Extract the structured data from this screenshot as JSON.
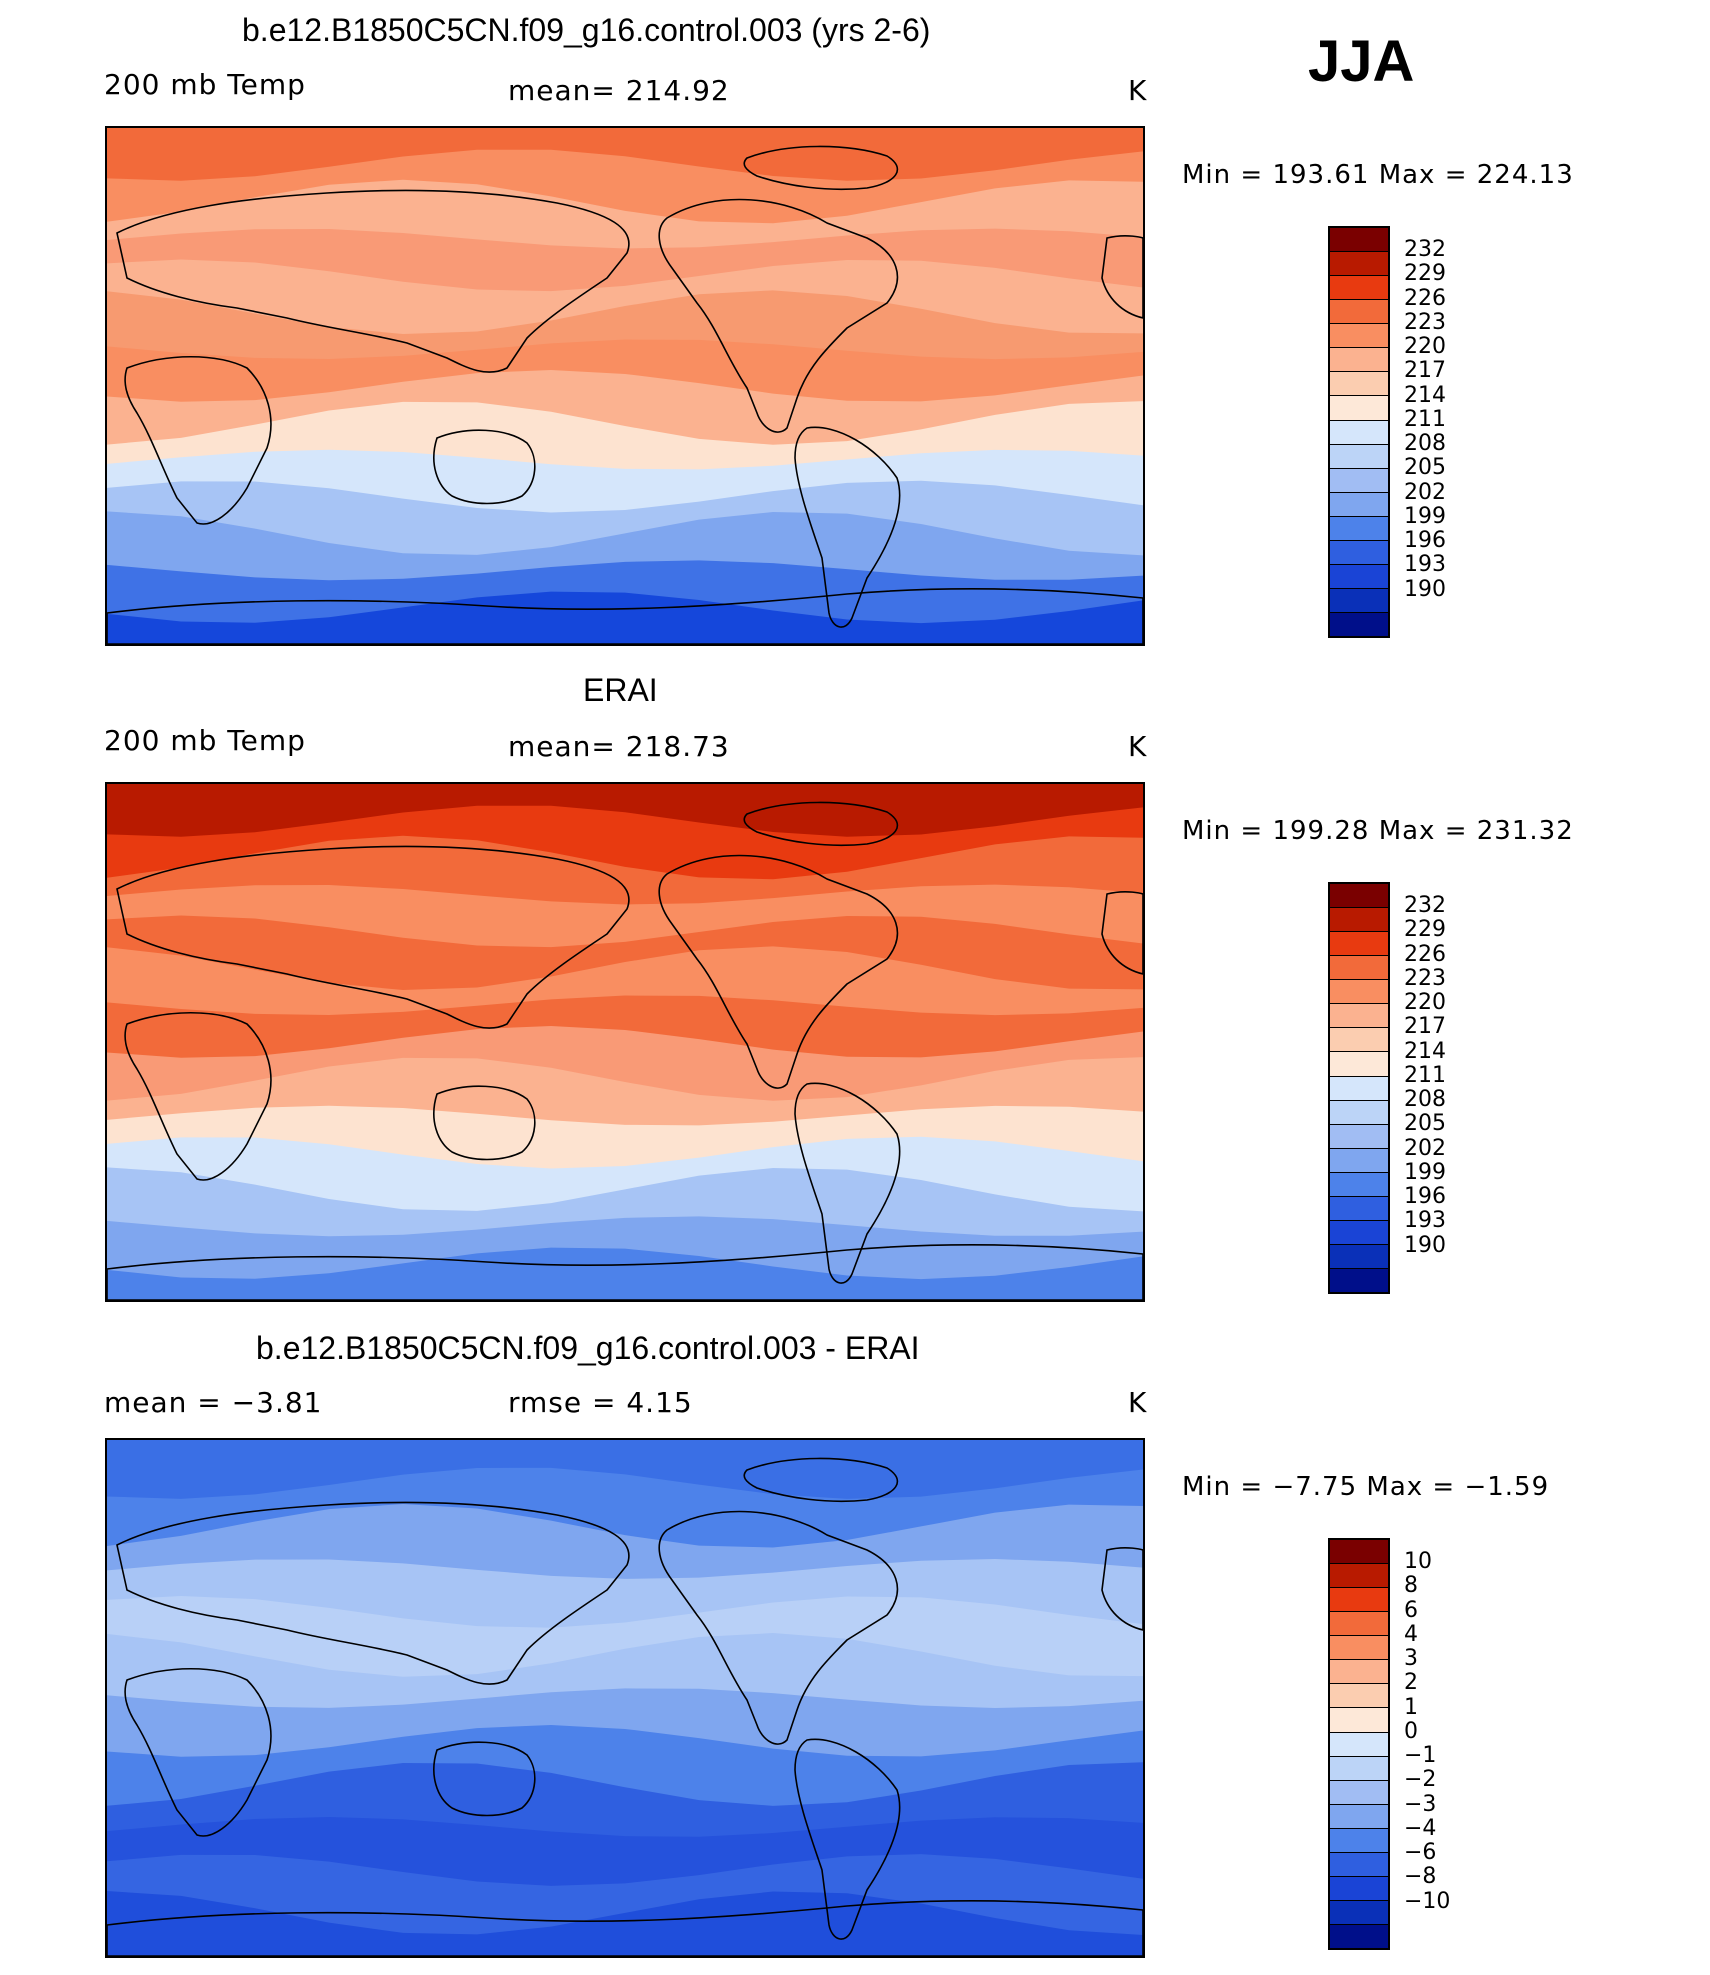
{
  "season": "JJA",
  "panels": [
    {
      "title": "b.e12.B1850C5CN.f09_g16.control.003 (yrs 2-6)",
      "left_label": "200 mb Temp",
      "center_label": "mean= 214.92",
      "units": "K",
      "minmax": "Min = 193.61 Max = 224.13",
      "colorbar_ticks": [
        "232",
        "229",
        "226",
        "223",
        "220",
        "217",
        "214",
        "211",
        "208",
        "205",
        "202",
        "199",
        "196",
        "193",
        "190"
      ],
      "bands": [
        "#f26a3a",
        "#f98e61",
        "#fbb290",
        "#f99a76",
        "#fbb290",
        "#f79a70",
        "#f98e61",
        "#fbb290",
        "#fde3d0",
        "#d5e6fb",
        "#a7c4f5",
        "#7fa6ef",
        "#3f72e6",
        "#1547db"
      ]
    },
    {
      "title": "ERAI",
      "left_label": "200 mb Temp",
      "center_label": "mean= 218.73",
      "units": "K",
      "minmax": "Min = 199.28 Max = 231.32",
      "colorbar_ticks": [
        "232",
        "229",
        "226",
        "223",
        "220",
        "217",
        "214",
        "211",
        "208",
        "205",
        "202",
        "199",
        "196",
        "193",
        "190"
      ],
      "bands": [
        "#b81a00",
        "#e83a10",
        "#f26a3a",
        "#f98e61",
        "#f26a3a",
        "#f98e61",
        "#f26a3a",
        "#f99a76",
        "#fbb290",
        "#fde3d0",
        "#d5e6fb",
        "#a7c4f5",
        "#7fa6ef",
        "#4d82ea"
      ]
    },
    {
      "title": "b.e12.B1850C5CN.f09_g16.control.003 - ERAI",
      "left_label": "mean = −3.81",
      "center_label": "rmse = 4.15",
      "units": "K",
      "minmax": "Min = −7.75 Max = −1.59",
      "colorbar_ticks": [
        "10",
        "8",
        "6",
        "4",
        "3",
        "2",
        "1",
        "0",
        "−1",
        "−2",
        "−3",
        "−4",
        "−6",
        "−8",
        "−10"
      ],
      "bands": [
        "#3a6fe5",
        "#4d82ea",
        "#7fa6ef",
        "#a7c4f5",
        "#b8d0f7",
        "#a7c4f5",
        "#7fa6ef",
        "#4d82ea",
        "#2f5fe0",
        "#2552dc",
        "#3565e2",
        "#1f4edb"
      ]
    }
  ],
  "colorbar_colors": [
    "#7a0000",
    "#b81a00",
    "#e83a10",
    "#f26a3a",
    "#f98e61",
    "#fbb290",
    "#fbcdb0",
    "#fde8d8",
    "#d5e6fb",
    "#bcd4f7",
    "#a1bdf3",
    "#7fa6ef",
    "#4d82ea",
    "#2f5fe0",
    "#1a44d6",
    "#0a30b8",
    "#000f8a"
  ]
}
